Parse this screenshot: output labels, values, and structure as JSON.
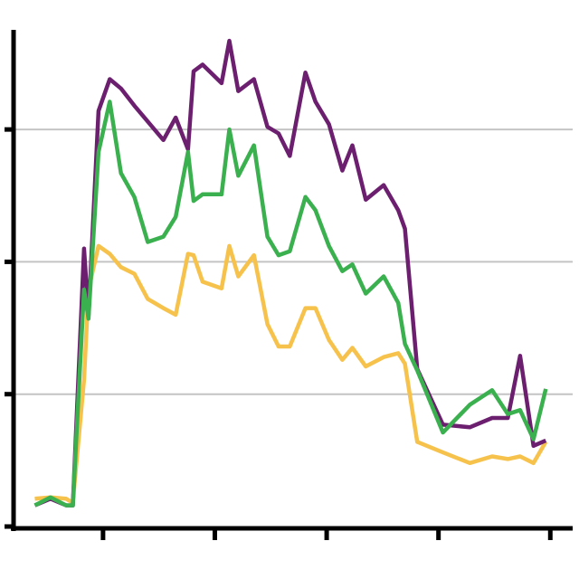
{
  "chart_data": {
    "type": "line",
    "x": [
      0.39,
      0.53,
      0.67,
      0.73,
      0.83,
      0.87,
      0.96,
      1.06,
      1.16,
      1.28,
      1.4,
      1.54,
      1.65,
      1.76,
      1.81,
      1.89,
      2.06,
      2.13,
      2.21,
      2.35,
      2.47,
      2.57,
      2.67,
      2.81,
      2.9,
      3.02,
      3.14,
      3.23,
      3.35,
      3.51,
      3.64,
      3.7,
      3.81,
      4.04,
      4.28,
      4.48,
      4.62,
      4.73,
      4.85,
      4.96
    ],
    "series": [
      {
        "color": "#f6c24b",
        "values": [
          0.21,
          0.22,
          0.21,
          0.18,
          1.11,
          1.79,
          2.12,
          2.06,
          1.96,
          1.91,
          1.72,
          1.65,
          1.6,
          2.06,
          2.05,
          1.85,
          1.8,
          2.12,
          1.89,
          2.05,
          1.53,
          1.36,
          1.36,
          1.65,
          1.65,
          1.41,
          1.26,
          1.35,
          1.21,
          1.28,
          1.31,
          1.23,
          0.64,
          0.56,
          0.48,
          0.53,
          0.51,
          0.53,
          0.48,
          0.64
        ]
      },
      {
        "color": "#6c1f6f",
        "values": [
          0.16,
          0.21,
          0.16,
          0.16,
          2.1,
          1.59,
          3.14,
          3.38,
          3.31,
          3.18,
          3.06,
          2.92,
          3.09,
          2.85,
          3.44,
          3.49,
          3.35,
          3.67,
          3.29,
          3.38,
          3.02,
          2.97,
          2.8,
          3.43,
          3.21,
          3.04,
          2.69,
          2.88,
          2.47,
          2.58,
          2.39,
          2.25,
          1.19,
          0.77,
          0.75,
          0.82,
          0.82,
          1.29,
          0.61,
          0.65
        ]
      },
      {
        "color": "#3bb04f",
        "values": [
          0.16,
          0.22,
          0.16,
          0.16,
          1.79,
          1.57,
          2.83,
          3.21,
          2.67,
          2.49,
          2.15,
          2.19,
          2.34,
          2.83,
          2.46,
          2.51,
          2.51,
          3.0,
          2.65,
          2.88,
          2.19,
          2.05,
          2.08,
          2.49,
          2.39,
          2.12,
          1.93,
          1.98,
          1.76,
          1.89,
          1.69,
          1.38,
          1.18,
          0.71,
          0.92,
          1.03,
          0.85,
          0.88,
          0.66,
          1.04
        ]
      }
    ],
    "xlim": [
      0.2,
      5.2
    ],
    "xticks": [
      1,
      2,
      3,
      4,
      5
    ],
    "ylim": [
      0,
      3.75
    ],
    "yticks": [
      0,
      1,
      2,
      3
    ],
    "grid": true
  }
}
